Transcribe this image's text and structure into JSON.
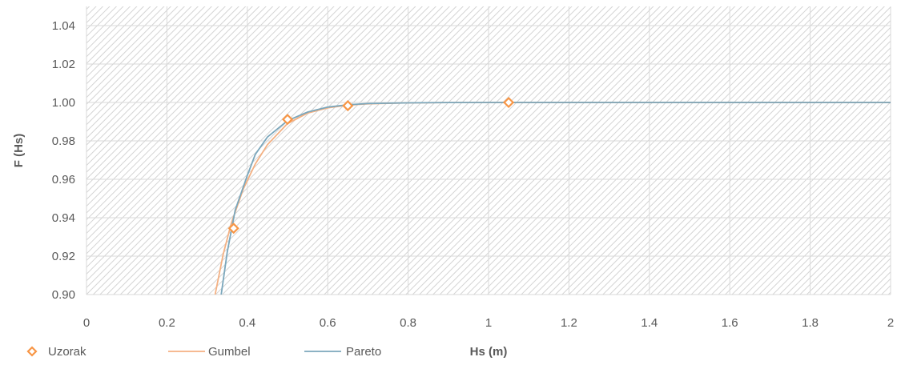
{
  "chart_data": {
    "type": "scatter",
    "title": "",
    "xlabel": "Hs (m)",
    "ylabel": "F (Hs)",
    "xlim": [
      0,
      2
    ],
    "ylim": [
      0.9,
      1.05
    ],
    "x_ticks": [
      "0",
      "0.2",
      "0.4",
      "0.6",
      "0.8",
      "1",
      "1.2",
      "1.4",
      "1.6",
      "1.8",
      "2"
    ],
    "y_ticks": [
      "0.90",
      "0.92",
      "0.94",
      "0.96",
      "0.98",
      "1.00",
      "1.02",
      "1.04"
    ],
    "grid": true,
    "legend_position": "bottom-left",
    "series": [
      {
        "name": "Uzorak",
        "kind": "markers",
        "color": "#f79646",
        "points": [
          {
            "x": 0.366,
            "y": 0.9345
          },
          {
            "x": 0.5,
            "y": 0.9912
          },
          {
            "x": 0.65,
            "y": 0.9983
          },
          {
            "x": 1.05,
            "y": 1.0
          }
        ]
      },
      {
        "name": "Gumbel",
        "kind": "line",
        "color": "#f4b183",
        "points": [
          {
            "x": 0.32,
            "y": 0.9
          },
          {
            "x": 0.34,
            "y": 0.921
          },
          {
            "x": 0.36,
            "y": 0.937
          },
          {
            "x": 0.39,
            "y": 0.955
          },
          {
            "x": 0.42,
            "y": 0.968
          },
          {
            "x": 0.45,
            "y": 0.978
          },
          {
            "x": 0.5,
            "y": 0.989
          },
          {
            "x": 0.55,
            "y": 0.9945
          },
          {
            "x": 0.6,
            "y": 0.9972
          },
          {
            "x": 0.65,
            "y": 0.9986
          },
          {
            "x": 0.7,
            "y": 0.9993
          },
          {
            "x": 0.8,
            "y": 0.9998
          },
          {
            "x": 0.9,
            "y": 0.99995
          },
          {
            "x": 1.0,
            "y": 1.0
          },
          {
            "x": 2.0,
            "y": 1.0
          }
        ]
      },
      {
        "name": "Pareto",
        "kind": "line",
        "color": "#7ba7bc",
        "points": [
          {
            "x": 0.335,
            "y": 0.9
          },
          {
            "x": 0.35,
            "y": 0.922
          },
          {
            "x": 0.37,
            "y": 0.944
          },
          {
            "x": 0.4,
            "y": 0.962
          },
          {
            "x": 0.42,
            "y": 0.973
          },
          {
            "x": 0.45,
            "y": 0.982
          },
          {
            "x": 0.5,
            "y": 0.9905
          },
          {
            "x": 0.55,
            "y": 0.995
          },
          {
            "x": 0.6,
            "y": 0.9976
          },
          {
            "x": 0.65,
            "y": 0.9988
          },
          {
            "x": 0.7,
            "y": 0.9994
          },
          {
            "x": 0.8,
            "y": 0.9998
          },
          {
            "x": 0.9,
            "y": 0.99995
          },
          {
            "x": 1.0,
            "y": 1.0
          },
          {
            "x": 2.0,
            "y": 1.0
          }
        ]
      }
    ]
  },
  "colors": {
    "background": "#ffffff",
    "plot_hatch": "#d4d4d4",
    "gridline": "#d9d9d9",
    "text": "#595959"
  }
}
